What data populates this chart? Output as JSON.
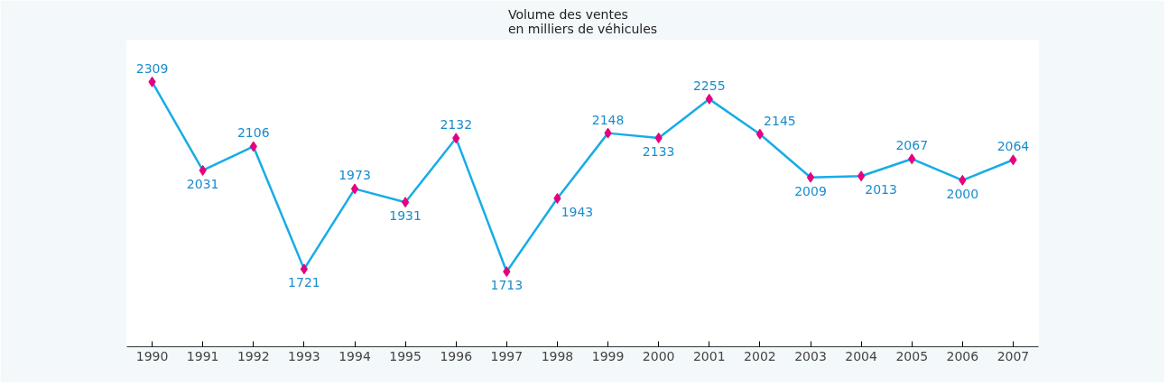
{
  "chart_data": {
    "type": "line",
    "title": "Volume des ventes\nen milliers de véhicules",
    "categories": [
      "1990",
      "1991",
      "1992",
      "1993",
      "1994",
      "1995",
      "1996",
      "1997",
      "1998",
      "1999",
      "2000",
      "2001",
      "2002",
      "2003",
      "2004",
      "2005",
      "2006",
      "2007"
    ],
    "series": [
      {
        "color": "#18ace6",
        "values": [
          2309,
          2031,
          2106,
          1721,
          1973,
          1931,
          2132,
          1713,
          1943,
          2148,
          2133,
          2255,
          2145,
          2009,
          2013,
          2067,
          2000,
          2064
        ]
      }
    ],
    "marker": "diamond",
    "data_labels": true,
    "grid": false,
    "tick_labels": "x"
  }
}
